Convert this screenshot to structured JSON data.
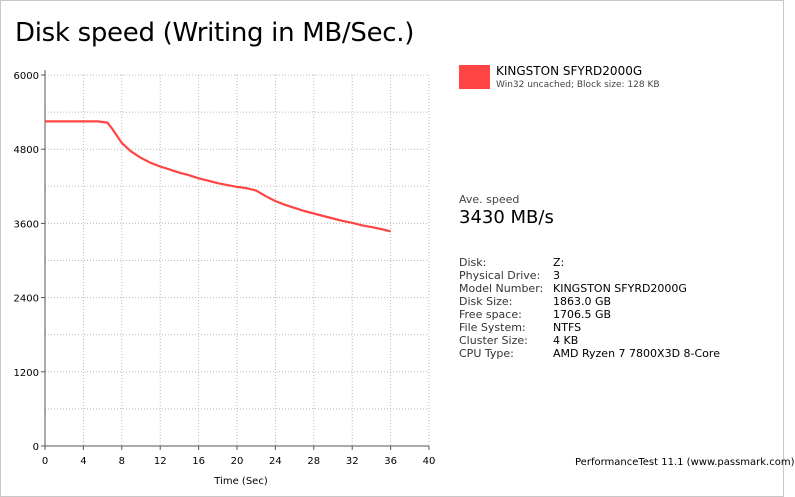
{
  "title": "Disk speed (Writing in MB/Sec.)",
  "legend": {
    "name": "KINGSTON SFYRD2000G",
    "subtitle": "Win32 uncached; Block size: 128 KB",
    "color": "#ff4444"
  },
  "ave_speed": {
    "label": "Ave. speed",
    "value": "3430 MB/s"
  },
  "info": [
    {
      "key": "Disk:",
      "value": "Z:"
    },
    {
      "key": "Physical Drive:",
      "value": "3"
    },
    {
      "key": "Model Number:",
      "value": "KINGSTON SFYRD2000G"
    },
    {
      "key": "Disk Size:",
      "value": "1863.0 GB"
    },
    {
      "key": "Free space:",
      "value": "1706.5 GB"
    },
    {
      "key": "File System:",
      "value": "NTFS"
    },
    {
      "key": "Cluster Size:",
      "value": "4 KB"
    },
    {
      "key": "CPU Type:",
      "value": "AMD Ryzen 7 7800X3D 8-Core"
    }
  ],
  "footer": "PerformanceTest 11.1 (www.passmark.com)",
  "chart_data": {
    "type": "line",
    "xlabel": "Time (Sec)",
    "ylabel": "",
    "xlim": [
      0,
      40
    ],
    "ylim": [
      0,
      6000
    ],
    "x_ticks": [
      "0",
      "4",
      "8",
      "12",
      "16",
      "20",
      "24",
      "28",
      "32",
      "36",
      "40"
    ],
    "y_ticks": [
      "0",
      "1200",
      "2400",
      "3600",
      "4800",
      "6000"
    ],
    "grid": true,
    "series": [
      {
        "name": "KINGSTON SFYRD2000G",
        "color": "#ff4444",
        "x": [
          0,
          2,
          4,
          5.5,
          6.5,
          7,
          8,
          9,
          10,
          11,
          12,
          13,
          14,
          15,
          16,
          17,
          18,
          19,
          20,
          21,
          22,
          23,
          24,
          25,
          26,
          27,
          28,
          29,
          30,
          31,
          32,
          33,
          34,
          35,
          36
        ],
        "y": [
          5250,
          5250,
          5250,
          5250,
          5230,
          5130,
          4900,
          4760,
          4660,
          4580,
          4520,
          4470,
          4420,
          4380,
          4330,
          4290,
          4250,
          4220,
          4190,
          4170,
          4130,
          4040,
          3960,
          3900,
          3850,
          3800,
          3760,
          3720,
          3680,
          3640,
          3610,
          3570,
          3540,
          3510,
          3470
        ]
      }
    ]
  }
}
